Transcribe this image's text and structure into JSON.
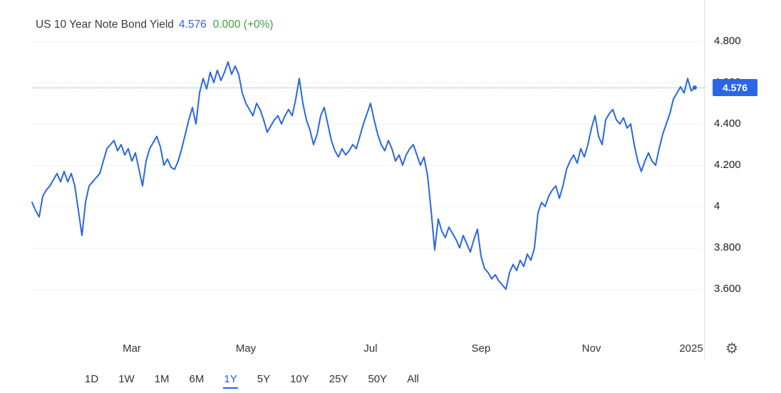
{
  "header": {
    "title": "US 10 Year Note Bond Yield",
    "price": "4.576",
    "change": "0.000 (+0%)"
  },
  "price_label": "4.576",
  "y_axis": [
    "4.800",
    "4.600",
    "4.400",
    "4.200",
    "4",
    "3.800",
    "3.600"
  ],
  "x_axis": [
    "Mar",
    "May",
    "Jul",
    "Sep",
    "Nov",
    "2025"
  ],
  "toolbar": {
    "ranges": [
      "1D",
      "1W",
      "1M",
      "6M",
      "1Y",
      "5Y",
      "10Y",
      "25Y",
      "50Y",
      "All"
    ],
    "active": "1Y"
  },
  "icons": {
    "settings_gear": "⚙"
  },
  "colors": {
    "line": "#2a66e6",
    "badge": "#2a66e6",
    "price_text": "#2a66e6",
    "change_text": "#3fa13f",
    "active_range": "#1f63e8",
    "gridline": "#f1f1f1"
  },
  "chart_data": {
    "type": "line",
    "title": "US 10 Year Note Bond Yield",
    "x_tick_labels": [
      "Mar",
      "May",
      "Jul",
      "Sep",
      "Nov",
      "2025"
    ],
    "x_tick_pos": [
      0.187,
      0.348,
      0.525,
      0.682,
      0.838,
      0.98
    ],
    "y_ticks": [
      4.8,
      4.6,
      4.4,
      4.2,
      4.0,
      3.8,
      3.6
    ],
    "ylim": [
      3.38,
      5.0
    ],
    "grid": "horizontal",
    "legend": "none",
    "current_value": 4.576,
    "change": 0.0,
    "change_pct": "+0%",
    "series": [
      {
        "name": "US 10 Year Note Bond Yield",
        "values": [
          4.02,
          3.98,
          3.95,
          4.05,
          4.08,
          4.1,
          4.13,
          4.16,
          4.12,
          4.17,
          4.12,
          4.16,
          4.1,
          3.98,
          3.86,
          4.02,
          4.1,
          4.12,
          4.14,
          4.16,
          4.22,
          4.28,
          4.3,
          4.32,
          4.27,
          4.3,
          4.25,
          4.28,
          4.22,
          4.26,
          4.18,
          4.1,
          4.22,
          4.28,
          4.31,
          4.34,
          4.29,
          4.2,
          4.23,
          4.19,
          4.18,
          4.22,
          4.28,
          4.35,
          4.42,
          4.48,
          4.4,
          4.55,
          4.62,
          4.57,
          4.65,
          4.6,
          4.66,
          4.61,
          4.65,
          4.7,
          4.64,
          4.68,
          4.64,
          4.55,
          4.5,
          4.47,
          4.44,
          4.5,
          4.47,
          4.42,
          4.36,
          4.39,
          4.42,
          4.44,
          4.4,
          4.44,
          4.47,
          4.44,
          4.52,
          4.62,
          4.5,
          4.42,
          4.37,
          4.3,
          4.35,
          4.44,
          4.48,
          4.4,
          4.32,
          4.27,
          4.24,
          4.28,
          4.25,
          4.27,
          4.3,
          4.28,
          4.34,
          4.4,
          4.45,
          4.5,
          4.42,
          4.35,
          4.3,
          4.27,
          4.32,
          4.28,
          4.22,
          4.25,
          4.2,
          4.25,
          4.28,
          4.3,
          4.25,
          4.2,
          4.24,
          4.15,
          3.98,
          3.79,
          3.94,
          3.88,
          3.85,
          3.9,
          3.87,
          3.84,
          3.8,
          3.86,
          3.82,
          3.78,
          3.84,
          3.89,
          3.76,
          3.7,
          3.68,
          3.65,
          3.67,
          3.64,
          3.62,
          3.6,
          3.68,
          3.72,
          3.69,
          3.74,
          3.71,
          3.77,
          3.74,
          3.8,
          3.97,
          4.02,
          4.0,
          4.05,
          4.08,
          4.1,
          4.04,
          4.1,
          4.18,
          4.22,
          4.25,
          4.21,
          4.28,
          4.24,
          4.3,
          4.38,
          4.44,
          4.34,
          4.3,
          4.42,
          4.45,
          4.47,
          4.42,
          4.4,
          4.43,
          4.38,
          4.4,
          4.3,
          4.22,
          4.17,
          4.22,
          4.26,
          4.22,
          4.2,
          4.28,
          4.35,
          4.4,
          4.45,
          4.52,
          4.55,
          4.58,
          4.55,
          4.62,
          4.56,
          4.576
        ]
      }
    ]
  }
}
